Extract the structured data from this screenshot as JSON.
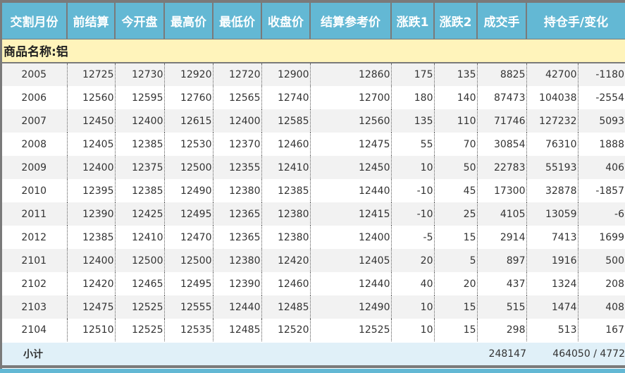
{
  "headers": [
    "交割月份",
    "前结算",
    "今开盘",
    "最高价",
    "最低价",
    "收盘价",
    "结算参考价",
    "涨跌1",
    "涨跌2",
    "成交手",
    "持仓手/变化"
  ],
  "product_label": "商品名称:铝",
  "rows": [
    [
      "2005",
      "12725",
      "12730",
      "12920",
      "12720",
      "12900",
      "12860",
      "175",
      "135",
      "8825",
      "42700",
      "-1180"
    ],
    [
      "2006",
      "12560",
      "12595",
      "12760",
      "12565",
      "12740",
      "12700",
      "180",
      "140",
      "87473",
      "104038",
      "-2554"
    ],
    [
      "2007",
      "12450",
      "12400",
      "12615",
      "12400",
      "12585",
      "12560",
      "135",
      "110",
      "71746",
      "127232",
      "5093"
    ],
    [
      "2008",
      "12405",
      "12385",
      "12530",
      "12370",
      "12460",
      "12475",
      "55",
      "70",
      "30854",
      "76310",
      "1888"
    ],
    [
      "2009",
      "12400",
      "12375",
      "12500",
      "12355",
      "12410",
      "12450",
      "10",
      "50",
      "22783",
      "55193",
      "406"
    ],
    [
      "2010",
      "12395",
      "12385",
      "12490",
      "12380",
      "12385",
      "12440",
      "-10",
      "45",
      "17300",
      "32878",
      "-1857"
    ],
    [
      "2011",
      "12390",
      "12425",
      "12495",
      "12365",
      "12380",
      "12415",
      "-10",
      "25",
      "4105",
      "13059",
      "-6"
    ],
    [
      "2012",
      "12385",
      "12410",
      "12470",
      "12365",
      "12380",
      "12400",
      "-5",
      "15",
      "2914",
      "7413",
      "1699"
    ],
    [
      "2101",
      "12400",
      "12500",
      "12500",
      "12380",
      "12420",
      "12405",
      "20",
      "5",
      "897",
      "1916",
      "500"
    ],
    [
      "2102",
      "12420",
      "12465",
      "12495",
      "12390",
      "12460",
      "12440",
      "40",
      "20",
      "437",
      "1324",
      "208"
    ],
    [
      "2103",
      "12475",
      "12525",
      "12555",
      "12440",
      "12485",
      "12490",
      "10",
      "15",
      "515",
      "1474",
      "408"
    ],
    [
      "2104",
      "12510",
      "12525",
      "12535",
      "12485",
      "12520",
      "12525",
      "10",
      "15",
      "298",
      "513",
      "167"
    ]
  ],
  "subtotal": {
    "label": "小计",
    "volume": "248147",
    "open_interest": "464050 / 4772"
  },
  "colors": {
    "header": "#63b8d4",
    "product_row": "#fff4bb",
    "subtotal": "#e0f0f8",
    "alt_row": "#f2f2f2"
  }
}
